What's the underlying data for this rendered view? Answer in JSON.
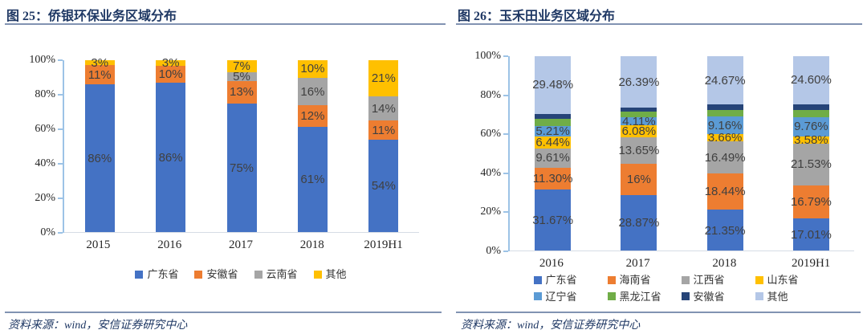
{
  "theme": {
    "title_color": "#1F3864",
    "rule_color": "#8193B2",
    "axis_color": "#9DC3E6",
    "data_label_color": "#404040",
    "source_color": "#1F3864"
  },
  "panels": [
    {
      "title": "图 25：侨银环保业务区域分布",
      "source": "资料来源：wind，安信证券研究中心",
      "chart_data": {
        "type": "bar",
        "stacked": true,
        "unit": "%",
        "title": "侨银环保业务区域分布",
        "categories": [
          "2015",
          "2016",
          "2017",
          "2018",
          "2019H1"
        ],
        "series": [
          {
            "name": "广东省",
            "color": "#4472C4",
            "values": [
              86,
              86,
              75,
              61,
              54
            ],
            "labels": [
              "86%",
              "86%",
              "75%",
              "61%",
              "54%"
            ]
          },
          {
            "name": "安徽省",
            "color": "#ED7D31",
            "values": [
              11,
              10,
              13,
              12,
              11
            ],
            "labels": [
              "11%",
              "10%",
              "13%",
              "12%",
              "11%"
            ]
          },
          {
            "name": "云南省",
            "color": "#A5A5A5",
            "values": [
              0,
              0,
              5,
              16,
              14
            ],
            "labels": [
              "",
              "",
              "5%",
              "16%",
              "14%"
            ]
          },
          {
            "name": "其他",
            "color": "#FFC000",
            "values": [
              3,
              3,
              7,
              10,
              21
            ],
            "labels": [
              "3%",
              "3%",
              "7%",
              "10%",
              "21%"
            ]
          }
        ],
        "ylim": [
          0,
          100
        ],
        "yticks": [
          "0%",
          "20%",
          "40%",
          "60%",
          "80%",
          "100%"
        ],
        "grid": false,
        "legend_position": "bottom",
        "legend_layout": "row"
      }
    },
    {
      "title": "图 26：玉禾田业务区域分布",
      "source": "资料来源：wind，安信证券研究中心",
      "chart_data": {
        "type": "bar",
        "stacked": true,
        "unit": "%",
        "title": "玉禾田业务区域分布",
        "categories": [
          "2016",
          "2017",
          "2018",
          "2019H1"
        ],
        "series": [
          {
            "name": "广东省",
            "color": "#4472C4",
            "values": [
              31.67,
              28.87,
              21.35,
              17.01
            ],
            "labels": [
              "31.67%",
              "28.87%",
              "21.35%",
              "17.01%"
            ]
          },
          {
            "name": "海南省",
            "color": "#ED7D31",
            "values": [
              11.3,
              16,
              18.44,
              16.79
            ],
            "labels": [
              "11.30%",
              "16%",
              "18.44%",
              "16.79%"
            ]
          },
          {
            "name": "江西省",
            "color": "#A5A5A5",
            "values": [
              9.61,
              13.65,
              16.49,
              21.53
            ],
            "labels": [
              "9.61%",
              "13.65%",
              "16.49%",
              "21.53%"
            ]
          },
          {
            "name": "山东省",
            "color": "#FFC000",
            "values": [
              6.44,
              6.08,
              3.66,
              3.58
            ],
            "labels": [
              "6.44%",
              "6.08%",
              "3.66%",
              "3.58%"
            ]
          },
          {
            "name": "辽宁省",
            "color": "#5B9BD5",
            "values": [
              5.21,
              4.11,
              9.16,
              9.76
            ],
            "labels": [
              "5.21%",
              "4.11%",
              "9.16%",
              "9.76%"
            ]
          },
          {
            "name": "黑龙江省",
            "color": "#70AD47",
            "values": [
              3.7,
              2.9,
              3.5,
              3.9
            ],
            "labels": [
              "",
              "",
              "",
              ""
            ]
          },
          {
            "name": "安徽省",
            "color": "#264478",
            "values": [
              2.6,
              2.0,
              2.7,
              2.8
            ],
            "labels": [
              "",
              "",
              "",
              ""
            ]
          },
          {
            "name": "其他",
            "color": "#B4C7E7",
            "values": [
              29.48,
              26.39,
              24.67,
              24.6
            ],
            "labels": [
              "29.48%",
              "26.39%",
              "24.67%",
              "24.60%"
            ]
          }
        ],
        "ylim": [
          0,
          100
        ],
        "yticks": [
          "0%",
          "20%",
          "40%",
          "60%",
          "80%",
          "100%"
        ],
        "grid": false,
        "legend_position": "bottom",
        "legend_layout": "grid-4col"
      }
    }
  ]
}
